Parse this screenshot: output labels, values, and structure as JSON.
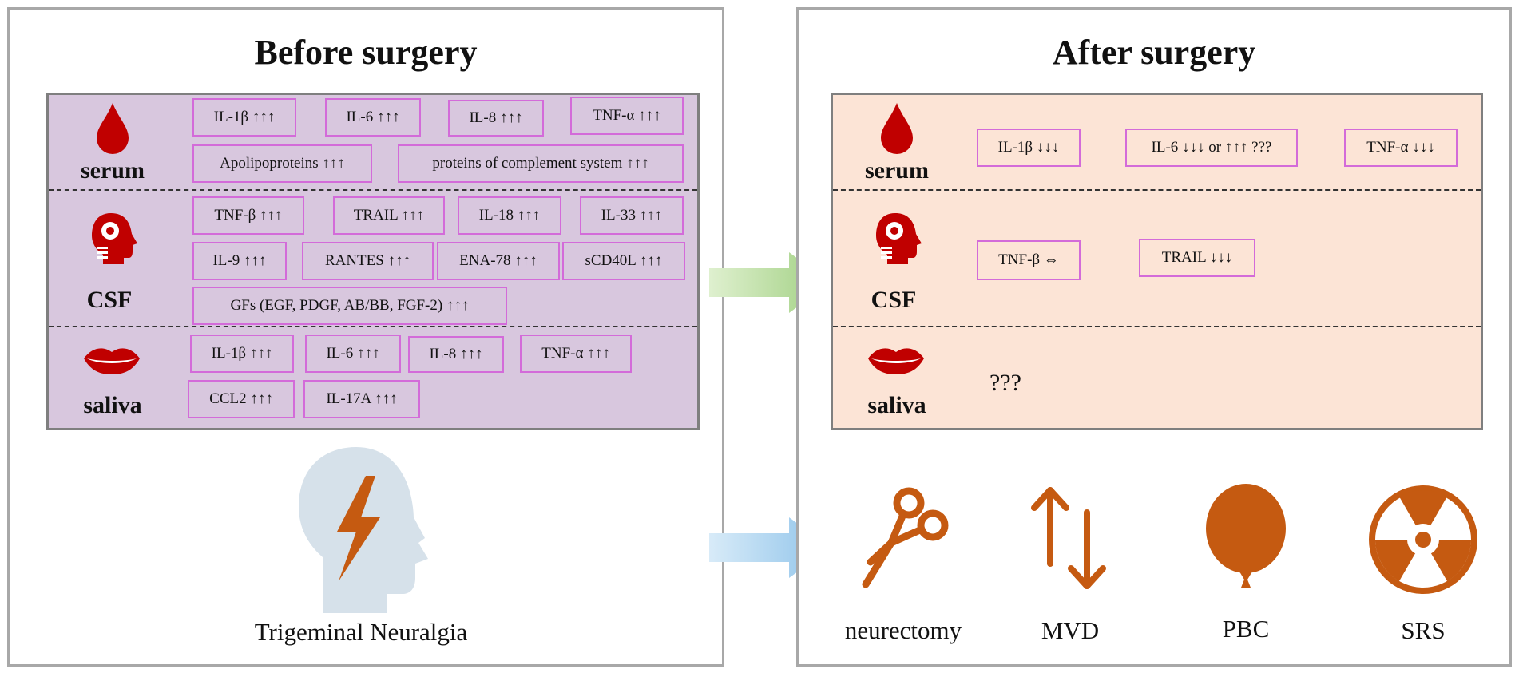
{
  "before": {
    "title": "Before surgery",
    "rows": {
      "serum": "serum",
      "csf": "CSF",
      "saliva": "saliva"
    },
    "serum_tags": [
      "IL-1β ↑↑↑",
      "IL-6 ↑↑↑",
      "IL-8 ↑↑↑",
      "TNF-α ↑↑↑",
      "Apolipoproteins ↑↑↑",
      "proteins of complement system ↑↑↑"
    ],
    "csf_tags": [
      "TNF-β ↑↑↑",
      "TRAIL ↑↑↑",
      "IL-18 ↑↑↑",
      "IL-33 ↑↑↑",
      "IL-9 ↑↑↑",
      "RANTES ↑↑↑",
      "ENA-78 ↑↑↑",
      "sCD40L ↑↑↑",
      "GFs (EGF, PDGF, AB/BB, FGF-2) ↑↑↑"
    ],
    "saliva_tags": [
      "IL-1β ↑↑↑",
      "IL-6 ↑↑↑",
      "IL-8 ↑↑↑",
      "TNF-α ↑↑↑",
      "CCL2 ↑↑↑",
      "IL-17A ↑↑↑"
    ],
    "condition_label": "Trigeminal Neuralgia"
  },
  "after": {
    "title": "After surgery",
    "rows": {
      "serum": "serum",
      "csf": "CSF",
      "saliva": "saliva"
    },
    "serum_tags": [
      "IL-1β ↓↓↓",
      "IL-6 ↓↓↓ or ↑↑↑ ???",
      "TNF-α ↓↓↓"
    ],
    "csf_tags": [
      "TNF-β ⇔",
      "TRAIL ↓↓↓"
    ],
    "saliva_text": "???",
    "procedures": [
      "neurectomy",
      "MVD",
      "PBC",
      "SRS"
    ]
  },
  "colors": {
    "before_table_bg": "#d8c7de",
    "after_table_bg": "#fce4d6",
    "tag_border": "#d36bd9",
    "icon_red": "#c00000",
    "procedure_orange": "#c55a11",
    "head_blue": "#d6e1ea",
    "green_arrow": "#a9d18e",
    "blue_arrow": "#9dc3e6"
  },
  "icons": [
    "blood-drop-icon",
    "head-icon",
    "lips-icon",
    "head-lightning-icon",
    "scissors-icon",
    "up-down-arrows-icon",
    "balloon-icon",
    "radiation-icon"
  ]
}
